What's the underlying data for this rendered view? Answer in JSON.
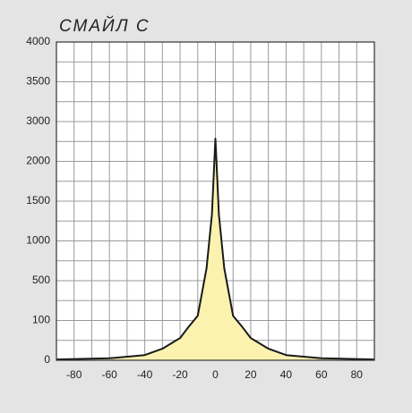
{
  "chart_data": {
    "type": "area",
    "title": "СМАЙЛ С",
    "x": [
      -90,
      -60,
      -40,
      -30,
      -20,
      -15,
      -10,
      -5,
      -2,
      0,
      2,
      5,
      10,
      15,
      20,
      30,
      40,
      60,
      90
    ],
    "values": [
      2,
      5,
      13,
      29,
      56,
      85,
      148,
      655,
      1330,
      2570,
      1330,
      655,
      148,
      85,
      56,
      29,
      13,
      5,
      2
    ],
    "color": "#1a1a1a",
    "fill": "#fbf2b0",
    "xlim": [
      -90,
      90
    ],
    "xticks": [
      -80,
      -60,
      -40,
      -20,
      0,
      20,
      40,
      60,
      80
    ],
    "ylim": [
      0,
      4000
    ],
    "yticks": [
      0,
      100,
      500,
      1000,
      1500,
      2000,
      3000,
      3500,
      4000
    ],
    "grid": true
  }
}
